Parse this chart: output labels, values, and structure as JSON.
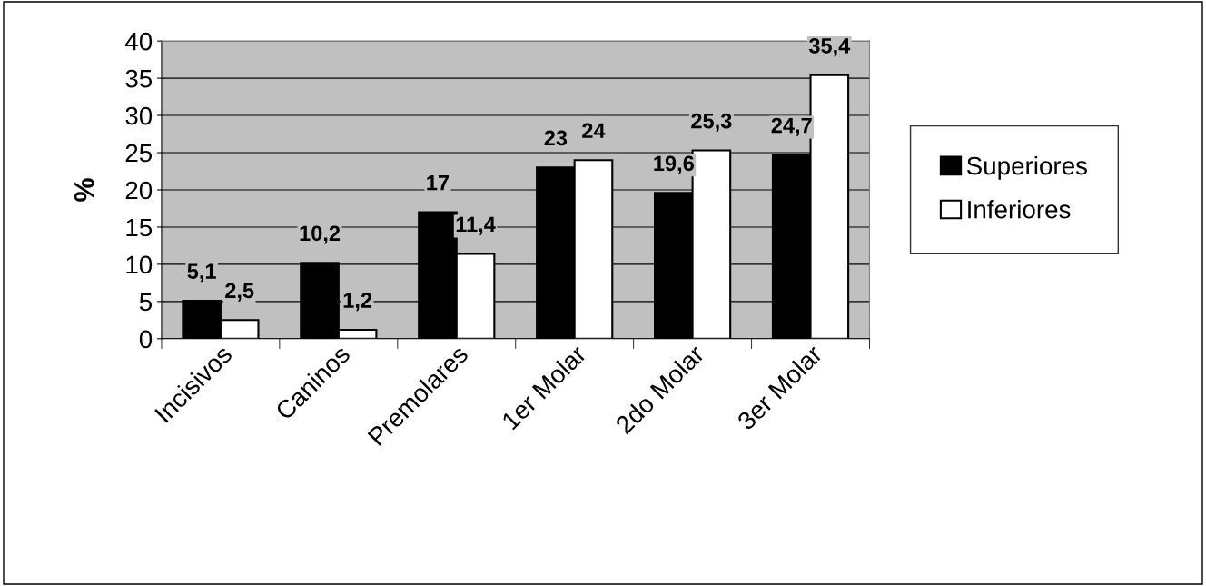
{
  "chart_data": {
    "type": "bar",
    "ylabel": "%",
    "categories": [
      "Incisivos",
      "Caninos",
      "Premolares",
      "1er Molar",
      "2do Molar",
      "3er Molar"
    ],
    "series": [
      {
        "name": "Superiores",
        "color": "#000000",
        "values": [
          5.1,
          10.2,
          17,
          23,
          19.6,
          24.7
        ],
        "value_labels": [
          "5,1",
          "10,2",
          "17",
          "23",
          "19,6",
          "24,7"
        ]
      },
      {
        "name": "Inferiores",
        "color": "#ffffff",
        "values": [
          2.5,
          1.2,
          11.4,
          24,
          25.3,
          35.4
        ],
        "value_labels": [
          "2,5",
          "1,2",
          "11,4",
          "24",
          "25,3",
          "35,4"
        ]
      }
    ],
    "ylim": [
      0,
      40
    ],
    "yticks": [
      0,
      5,
      10,
      15,
      20,
      25,
      30,
      35,
      40
    ],
    "grid": "y",
    "legend": "right"
  }
}
